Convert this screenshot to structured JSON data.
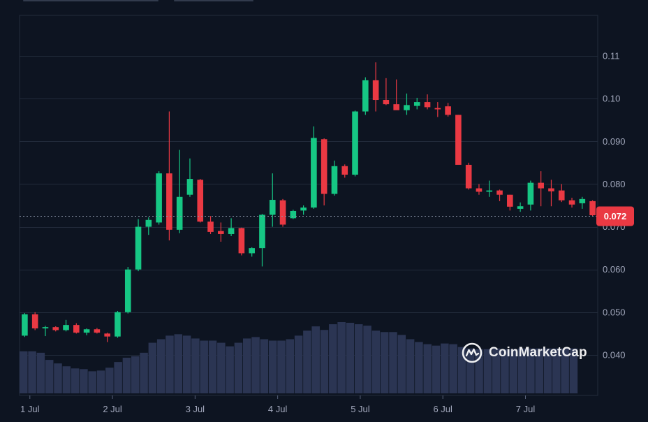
{
  "chart_data": {
    "type": "candlestick",
    "x_labels": [
      "1 Jul",
      "2 Jul",
      "3 Jul",
      "4 Jul",
      "5 Jul",
      "6 Jul",
      "7 Jul"
    ],
    "y_ticks": [
      "0.040",
      "0.050",
      "0.060",
      "0.070",
      "0.080",
      "0.090",
      "0.10",
      "0.11"
    ],
    "ylim": [
      0.0305,
      0.1195
    ],
    "current_price": 0.0725,
    "current_price_label": "0.072",
    "colors": {
      "up": "#16c784",
      "down": "#ea3943",
      "volume": "#2b3553",
      "background": "#0d1421"
    },
    "candles": [
      [
        0.0445,
        0.0498,
        0.0442,
        0.0495
      ],
      [
        0.0495,
        0.05,
        0.0458,
        0.0462
      ],
      [
        0.0462,
        0.0468,
        0.0444,
        0.0465
      ],
      [
        0.0465,
        0.0467,
        0.0455,
        0.0458
      ],
      [
        0.0458,
        0.0482,
        0.0455,
        0.047
      ],
      [
        0.047,
        0.0474,
        0.045,
        0.0452
      ],
      [
        0.0452,
        0.0462,
        0.0446,
        0.046
      ],
      [
        0.046,
        0.0463,
        0.045,
        0.0452
      ],
      [
        0.045,
        0.0452,
        0.043,
        0.0443
      ],
      [
        0.0443,
        0.0503,
        0.044,
        0.05
      ],
      [
        0.05,
        0.0606,
        0.0497,
        0.06
      ],
      [
        0.06,
        0.0718,
        0.0596,
        0.07
      ],
      [
        0.07,
        0.0722,
        0.0681,
        0.0716
      ],
      [
        0.071,
        0.083,
        0.0705,
        0.0825
      ],
      [
        0.0825,
        0.097,
        0.0668,
        0.0693
      ],
      [
        0.0693,
        0.088,
        0.0685,
        0.077
      ],
      [
        0.0775,
        0.086,
        0.077,
        0.0812
      ],
      [
        0.081,
        0.0812,
        0.071,
        0.0712
      ],
      [
        0.0712,
        0.0725,
        0.0683,
        0.0688
      ],
      [
        0.069,
        0.071,
        0.0665,
        0.0683
      ],
      [
        0.0683,
        0.072,
        0.0678,
        0.0697
      ],
      [
        0.0697,
        0.0698,
        0.0633,
        0.0638
      ],
      [
        0.0638,
        0.0652,
        0.063,
        0.065
      ],
      [
        0.065,
        0.073,
        0.0607,
        0.0728
      ],
      [
        0.0728,
        0.0825,
        0.07,
        0.0763
      ],
      [
        0.0762,
        0.0765,
        0.07,
        0.0705
      ],
      [
        0.072,
        0.074,
        0.0718,
        0.0737
      ],
      [
        0.0738,
        0.075,
        0.0728,
        0.0745
      ],
      [
        0.0745,
        0.0935,
        0.0742,
        0.0908
      ],
      [
        0.0905,
        0.0907,
        0.075,
        0.0777
      ],
      [
        0.0777,
        0.0855,
        0.0773,
        0.0842
      ],
      [
        0.0842,
        0.0846,
        0.0815,
        0.0822
      ],
      [
        0.0822,
        0.0972,
        0.0818,
        0.097
      ],
      [
        0.097,
        0.105,
        0.0962,
        0.1043
      ],
      [
        0.1043,
        0.1085,
        0.097,
        0.0997
      ],
      [
        0.0997,
        0.1048,
        0.0985,
        0.0987
      ],
      [
        0.0987,
        0.1045,
        0.0975,
        0.0973
      ],
      [
        0.0973,
        0.1012,
        0.0962,
        0.0985
      ],
      [
        0.0983,
        0.1002,
        0.0975,
        0.0992
      ],
      [
        0.0992,
        0.101,
        0.0975,
        0.098
      ],
      [
        0.0978,
        0.0992,
        0.0957,
        0.0975
      ],
      [
        0.0982,
        0.099,
        0.0958,
        0.0962
      ],
      [
        0.0962,
        0.0962,
        0.0848,
        0.0845
      ],
      [
        0.0845,
        0.085,
        0.0787,
        0.079
      ],
      [
        0.079,
        0.08,
        0.0775,
        0.0782
      ],
      [
        0.0782,
        0.0808,
        0.077,
        0.0785
      ],
      [
        0.0785,
        0.0787,
        0.076,
        0.0775
      ],
      [
        0.0775,
        0.0775,
        0.0738,
        0.0747
      ],
      [
        0.0742,
        0.0757,
        0.0735,
        0.0748
      ],
      [
        0.0752,
        0.0808,
        0.0738,
        0.0803
      ],
      [
        0.0803,
        0.083,
        0.0748,
        0.079
      ],
      [
        0.079,
        0.081,
        0.0748,
        0.0783
      ],
      [
        0.0785,
        0.08,
        0.0758,
        0.0762
      ],
      [
        0.0762,
        0.0768,
        0.0745,
        0.0752
      ],
      [
        0.0755,
        0.077,
        0.0742,
        0.0765
      ],
      [
        0.076,
        0.0762,
        0.0725,
        0.0727
      ]
    ],
    "volume": [
      0.59,
      0.59,
      0.57,
      0.47,
      0.42,
      0.38,
      0.35,
      0.34,
      0.31,
      0.32,
      0.36,
      0.44,
      0.5,
      0.52,
      0.57,
      0.71,
      0.76,
      0.81,
      0.83,
      0.81,
      0.77,
      0.74,
      0.74,
      0.71,
      0.66,
      0.71,
      0.77,
      0.79,
      0.76,
      0.74,
      0.74,
      0.76,
      0.81,
      0.88,
      0.94,
      0.89,
      0.97,
      1.0,
      0.99,
      0.97,
      0.95,
      0.88,
      0.86,
      0.86,
      0.82,
      0.76,
      0.72,
      0.69,
      0.67,
      0.7,
      0.69,
      0.65,
      0.63,
      0.62,
      0.62,
      0.63,
      0.62,
      0.62,
      0.63,
      0.63,
      0.63,
      0.63,
      0.63,
      0.63,
      0.63
    ]
  },
  "watermark": {
    "text": "CoinMarketCap",
    "icon": "coinmarketcap-logo-icon"
  }
}
